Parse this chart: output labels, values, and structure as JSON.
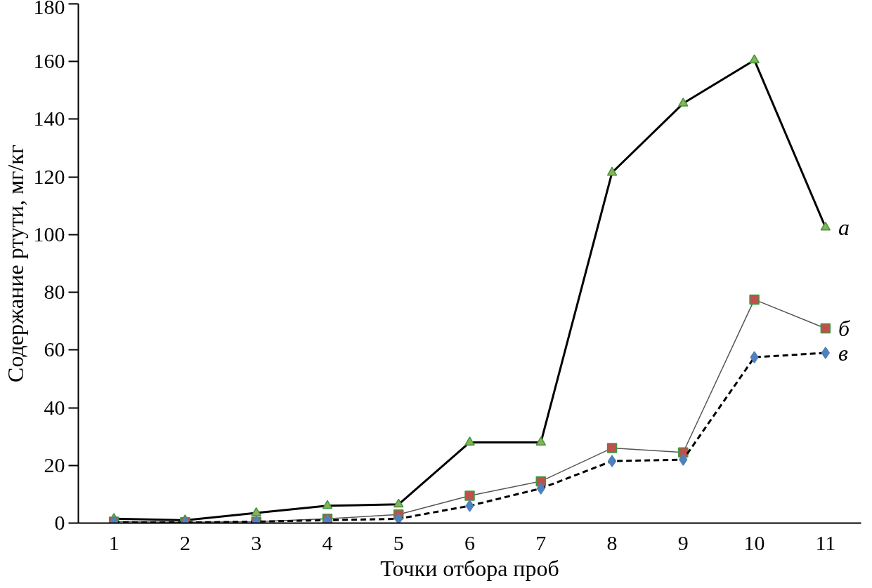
{
  "chart_data": {
    "type": "line",
    "xlabel": "Точки отбора проб",
    "ylabel": "Содержание ртути, мг/кг",
    "categories": [
      "1",
      "2",
      "3",
      "4",
      "5",
      "6",
      "7",
      "8",
      "9",
      "10",
      "11"
    ],
    "ylim": [
      0,
      180
    ],
    "yticks": [
      0,
      20,
      40,
      60,
      80,
      100,
      120,
      140,
      160,
      180
    ],
    "grid": false,
    "series": [
      {
        "name": "а",
        "color": "#8fae5a",
        "marker": "triangle",
        "line_style": "solid",
        "values": [
          1.5,
          1,
          3.5,
          6,
          6.5,
          28,
          28,
          121.5,
          145.5,
          160.5,
          102.5
        ]
      },
      {
        "name": "б",
        "color": "#c0504d",
        "marker": "square",
        "line_style": "solid",
        "values": [
          0.5,
          0.3,
          0.5,
          1.5,
          3,
          9.5,
          14.5,
          26,
          24.5,
          77.5,
          67.5
        ]
      },
      {
        "name": "в",
        "color": "#4f81bd",
        "marker": "diamond",
        "line_style": "dashed",
        "values": [
          0.3,
          0.2,
          0.5,
          1,
          1.5,
          6,
          12,
          21.5,
          22,
          57.5,
          59
        ]
      }
    ]
  }
}
